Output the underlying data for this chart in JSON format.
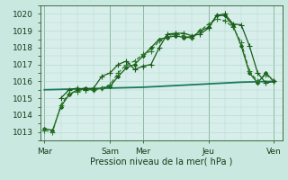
{
  "background_color": "#c8e8e0",
  "grid_color": "#b0d8d0",
  "plot_bg": "#d8eeea",
  "ylim": [
    1012.5,
    1020.5
  ],
  "yticks": [
    1013,
    1014,
    1015,
    1016,
    1017,
    1018,
    1019,
    1020
  ],
  "xlabel": "Pression niveau de la mer( hPa )",
  "xlabel_fontsize": 7,
  "tick_fontsize": 6.5,
  "day_labels": [
    "Mar",
    "Sam",
    "Mer",
    "Jeu",
    "Ven"
  ],
  "day_positions": [
    0,
    8,
    12,
    20,
    28
  ],
  "vline_positions": [
    0,
    8,
    12,
    20,
    28
  ],
  "series": {
    "line4": {
      "x": [
        0,
        4,
        8,
        12,
        16,
        20,
        24,
        28
      ],
      "y": [
        1015.5,
        1015.55,
        1015.6,
        1015.65,
        1015.75,
        1015.85,
        1015.95,
        1016.0
      ],
      "marker": "None",
      "markersize": 0,
      "linewidth": 1.3,
      "linestyle": "-",
      "color": "#1a7a5a"
    },
    "line1": {
      "x": [
        0,
        1,
        2,
        3,
        4,
        5,
        6,
        7,
        8,
        9,
        10,
        11,
        12,
        13,
        14,
        15,
        16,
        17,
        18,
        19,
        20,
        21,
        22,
        23,
        24,
        25,
        26,
        27,
        28
      ],
      "y": [
        1013.2,
        1013.1,
        1014.5,
        1015.2,
        1015.5,
        1015.6,
        1015.5,
        1015.6,
        1015.7,
        1016.3,
        1016.8,
        1017.0,
        1017.5,
        1018.0,
        1018.5,
        1018.6,
        1018.7,
        1018.6,
        1018.6,
        1019.0,
        1019.2,
        1019.9,
        1019.9,
        1019.3,
        1018.1,
        1016.5,
        1015.9,
        1016.5,
        1016.0
      ],
      "marker": "D",
      "markersize": 2,
      "linewidth": 0.9,
      "linestyle": "-",
      "color": "#1a5c1a"
    },
    "line2": {
      "x": [
        0,
        1,
        2,
        3,
        4,
        5,
        6,
        7,
        8,
        9,
        10,
        11,
        12,
        13,
        14,
        15,
        16,
        17,
        18,
        19,
        20,
        21,
        22,
        23,
        24,
        25,
        26,
        27,
        28
      ],
      "y": [
        1013.1,
        1013.0,
        1014.6,
        1015.3,
        1015.4,
        1015.5,
        1015.5,
        1015.6,
        1015.8,
        1016.5,
        1017.0,
        1017.2,
        1017.6,
        1017.8,
        1018.4,
        1018.7,
        1018.8,
        1018.7,
        1018.6,
        1019.0,
        1019.4,
        1019.7,
        1019.6,
        1019.2,
        1018.3,
        1016.6,
        1016.0,
        1016.4,
        1016.0
      ],
      "marker": "+",
      "markersize": 4,
      "linewidth": 0.9,
      "linestyle": "--",
      "color": "#2a7a2a"
    },
    "line3": {
      "x": [
        2,
        3,
        4,
        5,
        6,
        7,
        8,
        9,
        10,
        11,
        12,
        13,
        14,
        15,
        16,
        17,
        18,
        19,
        20,
        21,
        22,
        23,
        24,
        25,
        26,
        27,
        28
      ],
      "y": [
        1015.0,
        1015.5,
        1015.6,
        1015.5,
        1015.6,
        1016.3,
        1016.5,
        1017.0,
        1017.2,
        1016.7,
        1016.9,
        1017.0,
        1018.0,
        1018.8,
        1018.85,
        1018.85,
        1018.7,
        1018.8,
        1019.15,
        1019.9,
        1020.0,
        1019.4,
        1019.35,
        1018.1,
        1016.5,
        1015.9,
        1016.0
      ],
      "marker": "+",
      "markersize": 4,
      "linewidth": 0.9,
      "linestyle": "-",
      "color": "#1a5c1a"
    }
  }
}
